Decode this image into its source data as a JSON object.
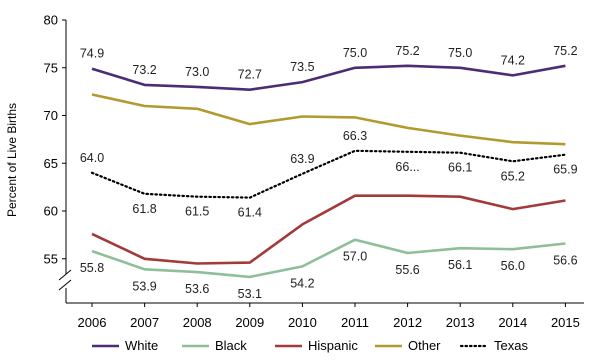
{
  "chart_data": {
    "type": "line",
    "ylabel": "Percent of Live Births",
    "xlabel": "",
    "ylim": [
      50,
      80
    ],
    "y_axis_break": true,
    "yticks": [
      55,
      60,
      65,
      70,
      75,
      80
    ],
    "categories": [
      "2006",
      "2007",
      "2008",
      "2009",
      "2010",
      "2011",
      "2012",
      "2013",
      "2014",
      "2015"
    ],
    "legend_position": "bottom",
    "series": [
      {
        "name": "White",
        "color": "#4b2d73",
        "dash": "solid",
        "values": [
          74.9,
          73.2,
          73.0,
          72.7,
          73.5,
          75.0,
          75.2,
          75.0,
          74.2,
          75.2
        ],
        "labels": [
          "74.9",
          "73.2",
          "73.0",
          "72.7",
          "73.5",
          "75.0",
          "75.2",
          "75.0",
          "74.2",
          "75.2"
        ],
        "label_position": "above"
      },
      {
        "name": "Black",
        "color": "#8fbf9a",
        "dash": "solid",
        "values": [
          55.8,
          53.9,
          53.6,
          53.1,
          54.2,
          57.0,
          55.6,
          56.1,
          56.0,
          56.6
        ],
        "labels": [
          "55.8",
          "53.9",
          "53.6",
          "53.1",
          "54.2",
          "57.0",
          "55.6",
          "56.1",
          "56.0",
          "56.6"
        ],
        "label_position": "below"
      },
      {
        "name": "Hispanic",
        "color": "#a33a3a",
        "dash": "solid",
        "values": [
          57.6,
          55.0,
          54.5,
          54.6,
          58.6,
          61.6,
          61.6,
          61.5,
          60.2,
          61.1
        ],
        "labels": [],
        "label_position": "none"
      },
      {
        "name": "Other",
        "color": "#b39a2e",
        "dash": "solid",
        "values": [
          72.2,
          71.0,
          70.7,
          69.1,
          69.9,
          69.8,
          68.7,
          67.9,
          67.2,
          67.0
        ],
        "labels": [],
        "label_position": "none"
      },
      {
        "name": "Texas",
        "color": "#000000",
        "dash": "dotted",
        "values": [
          64.0,
          61.8,
          61.5,
          61.4,
          63.9,
          66.3,
          66.2,
          66.1,
          65.2,
          65.9
        ],
        "labels": [
          "64.0",
          "61.8",
          "61.5",
          "61.4",
          "63.9",
          "66.3",
          "66...",
          "66.1",
          "65.2",
          "65.9"
        ],
        "label_position": "mixed"
      }
    ]
  }
}
